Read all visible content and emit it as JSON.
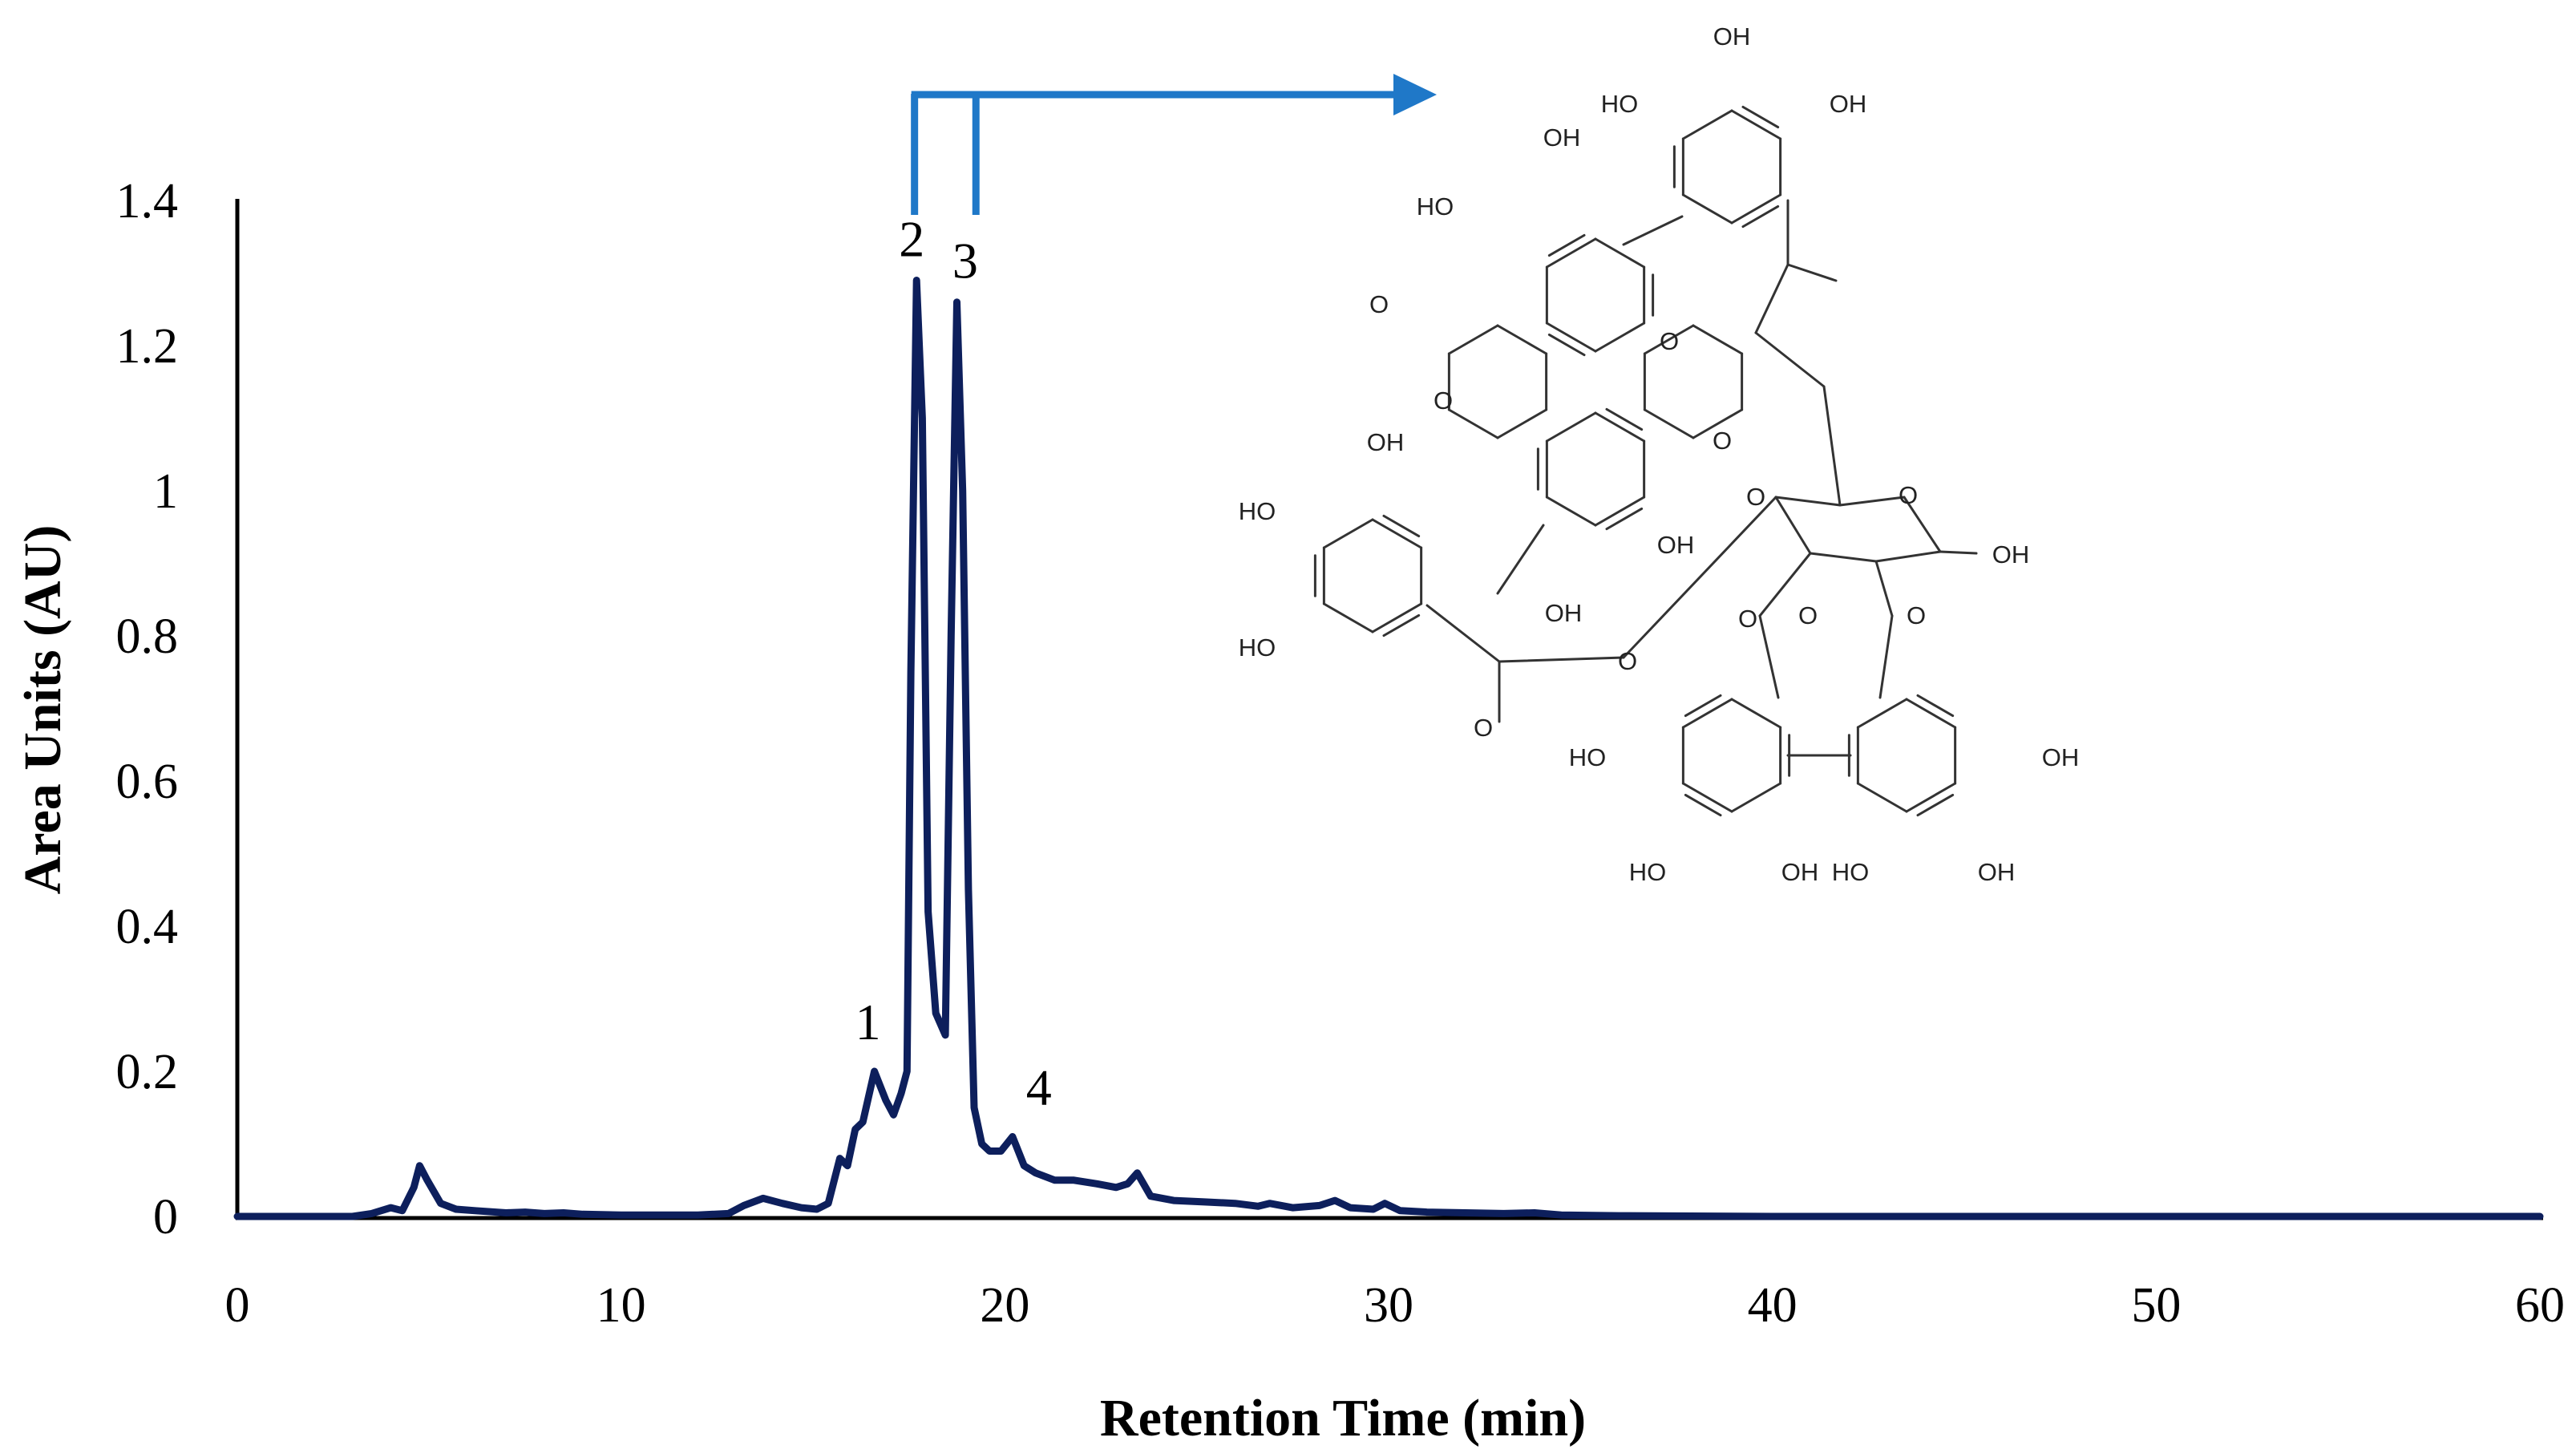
{
  "chart_data": {
    "type": "line",
    "title": "",
    "xlabel": "Retention Time (min)",
    "ylabel": "Area Units (AU)",
    "xlim": [
      0,
      60
    ],
    "ylim": [
      0,
      1.4
    ],
    "xticks": [
      "0",
      "10",
      "20",
      "30",
      "40",
      "50",
      "60"
    ],
    "yticks": [
      "0",
      "0.2",
      "0.4",
      "0.6",
      "0.8",
      "1",
      "1.2",
      "1.4"
    ],
    "grid": false,
    "legend": "none",
    "series": [
      {
        "color": "#0d1f5c",
        "x": [
          0,
          2,
          3,
          3.5,
          4,
          4.3,
          4.6,
          4.75,
          4.95,
          5.3,
          5.7,
          6.2,
          7,
          7.5,
          8,
          8.5,
          9,
          10,
          11,
          12,
          12.8,
          13.2,
          13.7,
          14.2,
          14.7,
          15.1,
          15.4,
          15.7,
          15.9,
          16.1,
          16.3,
          16.6,
          16.9,
          17.1,
          17.3,
          17.45,
          17.55,
          17.7,
          17.85,
          18,
          18.2,
          18.45,
          18.6,
          18.75,
          18.9,
          19.05,
          19.2,
          19.4,
          19.6,
          19.9,
          20.2,
          20.5,
          20.8,
          21.3,
          21.8,
          22.4,
          22.9,
          23.2,
          23.45,
          23.8,
          24.4,
          25.2,
          26,
          26.6,
          26.9,
          27.5,
          28.2,
          28.6,
          29.0,
          29.6,
          29.9,
          30.3,
          31,
          32,
          33,
          33.8,
          34.5,
          36,
          40,
          45,
          50,
          55,
          60
        ],
        "y": [
          0,
          0,
          0,
          0.004,
          0.012,
          0.008,
          0.04,
          0.07,
          0.05,
          0.018,
          0.01,
          0.008,
          0.005,
          0.006,
          0.004,
          0.005,
          0.003,
          0.002,
          0.002,
          0.002,
          0.004,
          0.015,
          0.025,
          0.018,
          0.012,
          0.01,
          0.018,
          0.08,
          0.07,
          0.12,
          0.13,
          0.2,
          0.16,
          0.14,
          0.17,
          0.2,
          0.75,
          1.29,
          1.1,
          0.42,
          0.28,
          0.25,
          0.8,
          1.26,
          1.0,
          0.45,
          0.15,
          0.1,
          0.09,
          0.09,
          0.11,
          0.07,
          0.06,
          0.05,
          0.05,
          0.045,
          0.04,
          0.045,
          0.06,
          0.028,
          0.022,
          0.02,
          0.018,
          0.014,
          0.018,
          0.012,
          0.015,
          0.022,
          0.012,
          0.01,
          0.018,
          0.008,
          0.006,
          0.005,
          0.004,
          0.005,
          0.002,
          0.001,
          0,
          0,
          0,
          0,
          0
        ]
      }
    ],
    "peak_labels": [
      {
        "text": "1",
        "x": 16.6,
        "y": 0.2
      },
      {
        "text": "2",
        "x": 17.7,
        "y": 1.29
      },
      {
        "text": "3",
        "x": 18.8,
        "y": 1.26
      },
      {
        "text": "4",
        "x": 20.3,
        "y": 0.11
      }
    ],
    "annotation": {
      "type": "bracket-arrow",
      "from_x": [
        17.5,
        19.1
      ],
      "color": "#1f78c8"
    }
  },
  "structure_labels": {
    "oh": "OH",
    "ho": "HO",
    "o": "O"
  }
}
